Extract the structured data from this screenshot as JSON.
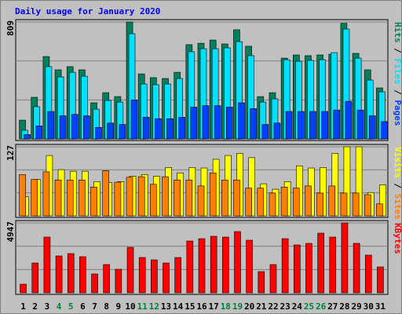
{
  "chart_data": [
    {
      "type": "bar",
      "title": "Daily usage for January 2020",
      "legend_separator": "/",
      "ylim": [
        0,
        809
      ],
      "yticks": [
        809
      ],
      "series": [
        {
          "name": "Hits",
          "color": "#00805c",
          "values": [
            130,
            288,
            570,
            478,
            500,
            478,
            250,
            320,
            293,
            809,
            450,
            424,
            418,
            461,
            652,
            662,
            684,
            657,
            755,
            641,
            293,
            320,
            559,
            581,
            576,
            581,
            586,
            800,
            592,
            478,
            353
          ]
        },
        {
          "name": "Files",
          "color": "#00e0ff",
          "values": [
            60,
            223,
            500,
            429,
            461,
            434,
            206,
            266,
            255,
            728,
            380,
            375,
            380,
            418,
            603,
            624,
            624,
            630,
            673,
            576,
            255,
            277,
            548,
            537,
            543,
            548,
            597,
            760,
            559,
            407,
            326
          ]
        },
        {
          "name": "Pages",
          "color": "#0040ff",
          "values": [
            30,
            90,
            190,
            160,
            170,
            160,
            80,
            110,
            100,
            270,
            150,
            140,
            140,
            150,
            220,
            230,
            230,
            220,
            250,
            210,
            100,
            110,
            190,
            190,
            190,
            190,
            200,
            260,
            200,
            160,
            120
          ]
        }
      ]
    },
    {
      "type": "bar",
      "legend_separator": "/",
      "ylim": [
        0,
        127
      ],
      "yticks": [
        127
      ],
      "series": [
        {
          "name": "Visits",
          "color": "#ffff00",
          "values": [
            35,
            67,
            111,
            85,
            82,
            82,
            63,
            61,
            63,
            73,
            76,
            73,
            89,
            79,
            89,
            88,
            104,
            111,
            115,
            107,
            59,
            49,
            63,
            92,
            88,
            89,
            115,
            127,
            127,
            43,
            57
          ]
        },
        {
          "name": "Sites",
          "color": "#ff8000",
          "values": [
            76,
            67,
            81,
            66,
            66,
            66,
            53,
            83,
            62,
            71,
            72,
            58,
            72,
            66,
            66,
            55,
            79,
            66,
            66,
            51,
            51,
            42,
            53,
            51,
            55,
            42,
            55,
            42,
            42,
            39,
            22
          ]
        }
      ]
    },
    {
      "type": "bar",
      "ylim": [
        0,
        4947
      ],
      "yticks": [
        4947
      ],
      "categories": [
        "1",
        "2",
        "3",
        "4",
        "5",
        "6",
        "7",
        "8",
        "9",
        "10",
        "11",
        "12",
        "13",
        "14",
        "15",
        "16",
        "17",
        "18",
        "19",
        "20",
        "21",
        "22",
        "23",
        "24",
        "25",
        "26",
        "27",
        "28",
        "29",
        "30",
        "31"
      ],
      "category_colors": [
        "#000000",
        "#000000",
        "#000000",
        "#008040",
        "#008040",
        "#000000",
        "#000000",
        "#000000",
        "#000000",
        "#000000",
        "#008040",
        "#008040",
        "#000000",
        "#000000",
        "#000000",
        "#000000",
        "#000000",
        "#008040",
        "#008040",
        "#000000",
        "#000000",
        "#000000",
        "#000000",
        "#000000",
        "#008040",
        "#008040",
        "#000000",
        "#000000",
        "#000000",
        "#000000",
        "#000000"
      ],
      "series": [
        {
          "name": "KBytes",
          "color": "#ff0000",
          "values": [
            611,
            2112,
            3946,
            2612,
            2779,
            2557,
            1334,
            2001,
            1667,
            3223,
            2501,
            2334,
            2112,
            2501,
            3668,
            3835,
            4002,
            3946,
            4335,
            3724,
            1500,
            2001,
            3835,
            3390,
            3501,
            4224,
            3946,
            4947,
            3501,
            2668,
            1834
          ]
        }
      ]
    }
  ]
}
